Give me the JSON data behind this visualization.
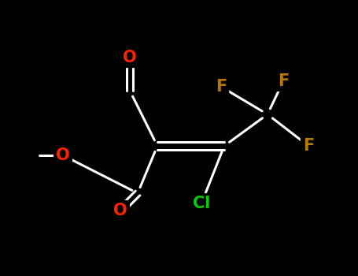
{
  "background_color": "#000000",
  "figsize": [
    4.55,
    3.5
  ],
  "dpi": 100,
  "white": "#ffffff",
  "atom_colors": {
    "O": "#ff2200",
    "Cl": "#00cc00",
    "F": "#b87800"
  }
}
